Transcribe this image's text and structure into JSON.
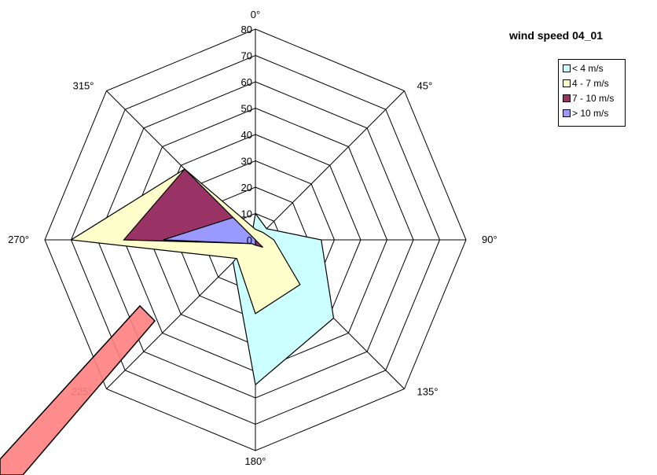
{
  "chart_data": {
    "type": "radar",
    "title": "wind speed 04_01",
    "directions": [
      "0°",
      "45°",
      "90°",
      "135°",
      "180°",
      "225°",
      "270°",
      "315°"
    ],
    "radial_ticks": [
      "0",
      "10",
      "20",
      "30",
      "40",
      "50",
      "60",
      "70",
      "80"
    ],
    "rmax": 80,
    "legend_position": "top-right",
    "series": [
      {
        "name": "< 4 m/s",
        "color": "#ccffff",
        "values": [
          10,
          6,
          25,
          42,
          55,
          12,
          2,
          2
        ]
      },
      {
        "name": "4 - 7 m/s",
        "color": "#ffffcc",
        "values": [
          4,
          4,
          7,
          24,
          28,
          10,
          70,
          38
        ]
      },
      {
        "name": "7 - 10 m/s",
        "color": "#993366",
        "values": [
          0,
          0,
          0,
          4,
          2,
          2,
          50,
          38
        ]
      },
      {
        "name": "> 10 m/s",
        "color": "#9999ff",
        "values": [
          0,
          0,
          0,
          0,
          2,
          2,
          35,
          12
        ]
      }
    ],
    "annotation_color": "#ff8080"
  }
}
